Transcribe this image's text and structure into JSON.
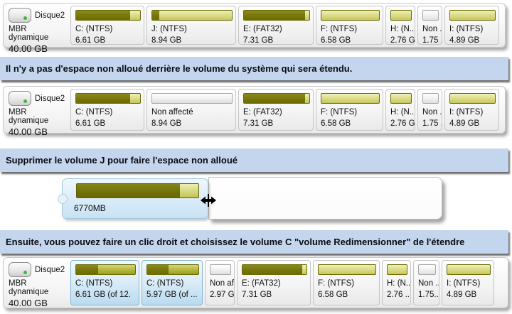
{
  "disk": {
    "name": "Disque2",
    "layout": "MBR dynamique",
    "capacity": "40.00 GB"
  },
  "banners": [
    {
      "text": "Il n'y a pas d'espace non alloué derrière le volume du système qui sera étendu."
    },
    {
      "text": "Supprimer le volume J pour faire l'espace non alloué"
    },
    {
      "text": "Ensuite, vous pouvez faire un clic droit et choisissez le volume C \"volume Redimensionner\" de l'étendre"
    }
  ],
  "rows": [
    {
      "partitions": [
        {
          "label": "C: (NTFS)",
          "size": "6.61 GB",
          "used": 84
        },
        {
          "label": "J: (NTFS)",
          "size": "8.94 GB",
          "used": 9
        },
        {
          "label": "E: (FAT32)",
          "size": "7.31 GB",
          "used": 93
        },
        {
          "label": "F: (NTFS)",
          "size": "6.58 GB",
          "used": 0
        },
        {
          "label": "H: (N...",
          "size": "2.76 GB",
          "used": 0
        },
        {
          "label": "Non ...",
          "size": "1.75 ...",
          "used": 0
        },
        {
          "label": "I: (NTFS)",
          "size": "4.89 GB",
          "used": 0
        }
      ]
    },
    {
      "partitions": [
        {
          "label": "C: (NTFS)",
          "size": "6.61 GB",
          "used": 84
        },
        {
          "label": "Non affecté",
          "size": "8.94 GB",
          "used": 0
        },
        {
          "label": "E: (FAT32)",
          "size": "7.31 GB",
          "used": 93
        },
        {
          "label": "F: (NTFS)",
          "size": "6.58 GB",
          "used": 0
        },
        {
          "label": "H: (N...",
          "size": "2.76 GB",
          "used": 0
        },
        {
          "label": "Non ...",
          "size": "1.75 ...",
          "used": 0
        },
        {
          "label": "I: (NTFS)",
          "size": "4.89 GB",
          "used": 0
        }
      ]
    },
    {
      "partitions": [
        {
          "label": "C: (NTFS)",
          "size": "6.61 GB (of 12.",
          "used": 37
        },
        {
          "label": "C: (NTFS)",
          "size": "5.97 GB (of ...",
          "used": 42
        },
        {
          "label": "Non aff...",
          "size": "2.97 GB",
          "used": 0
        },
        {
          "label": "E: (FAT32)",
          "size": "7.31 GB",
          "used": 93
        },
        {
          "label": "F: (NTFS)",
          "size": "6.58 GB",
          "used": 0
        },
        {
          "label": "H: (N...",
          "size": "2.76 ...",
          "used": 0
        },
        {
          "label": "Non ...",
          "size": "1.75..",
          "used": 0
        },
        {
          "label": "I: (NTFS)",
          "size": "4.89 GB",
          "used": 0
        }
      ]
    }
  ],
  "resize": {
    "label": "6770MB",
    "used": 85
  },
  "colors": {
    "banner_bg": "#c3d6ee",
    "used_olive": "#717106",
    "free_olive": "#d8d983",
    "selected_blue": "#b9dbf0",
    "disk_led_green": "#41b53c"
  }
}
